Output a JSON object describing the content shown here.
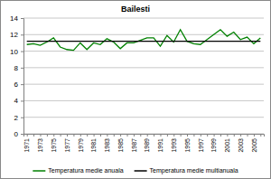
{
  "chart_data": {
    "type": "line",
    "title": "Bailesti",
    "categories": [
      "1971",
      null,
      "1973",
      null,
      "1975",
      null,
      "1977",
      null,
      "1979",
      null,
      "1981",
      null,
      "1983",
      null,
      "1985",
      null,
      "1987",
      null,
      "1989",
      null,
      "1991",
      null,
      "1993",
      null,
      "1995",
      null,
      "1997",
      null,
      "1999",
      null,
      "2001",
      null,
      "2003",
      null,
      "2005",
      null
    ],
    "series": [
      {
        "name": "Temperatura medie anuala",
        "color": "#008000",
        "type": "line",
        "values": [
          10.8,
          10.9,
          10.7,
          11.1,
          11.6,
          10.5,
          10.2,
          10.1,
          11.0,
          10.2,
          11.0,
          10.8,
          11.5,
          11.1,
          10.3,
          11.0,
          11.0,
          11.3,
          11.6,
          11.6,
          10.6,
          11.9,
          11.1,
          12.6,
          11.2,
          10.9,
          10.8,
          11.4,
          12.0,
          12.6,
          11.8,
          12.3,
          11.4,
          11.7,
          10.9,
          11.6
        ]
      },
      {
        "name": "Temperatura medie multianuala",
        "color": "#000000",
        "type": "line",
        "values": [
          11.2,
          11.2,
          11.2,
          11.2,
          11.2,
          11.2,
          11.2,
          11.2,
          11.2,
          11.2,
          11.2,
          11.2,
          11.2,
          11.2,
          11.2,
          11.2,
          11.2,
          11.2,
          11.2,
          11.2,
          11.2,
          11.2,
          11.2,
          11.2,
          11.2,
          11.2,
          11.2,
          11.2,
          11.2,
          11.2,
          11.2,
          11.2,
          11.2,
          11.2,
          11.2,
          11.2
        ]
      }
    ],
    "ylim": [
      0,
      14
    ],
    "yticks": [
      0,
      2,
      4,
      6,
      8,
      10,
      12,
      14
    ],
    "grid": true,
    "legend": "bottom"
  }
}
